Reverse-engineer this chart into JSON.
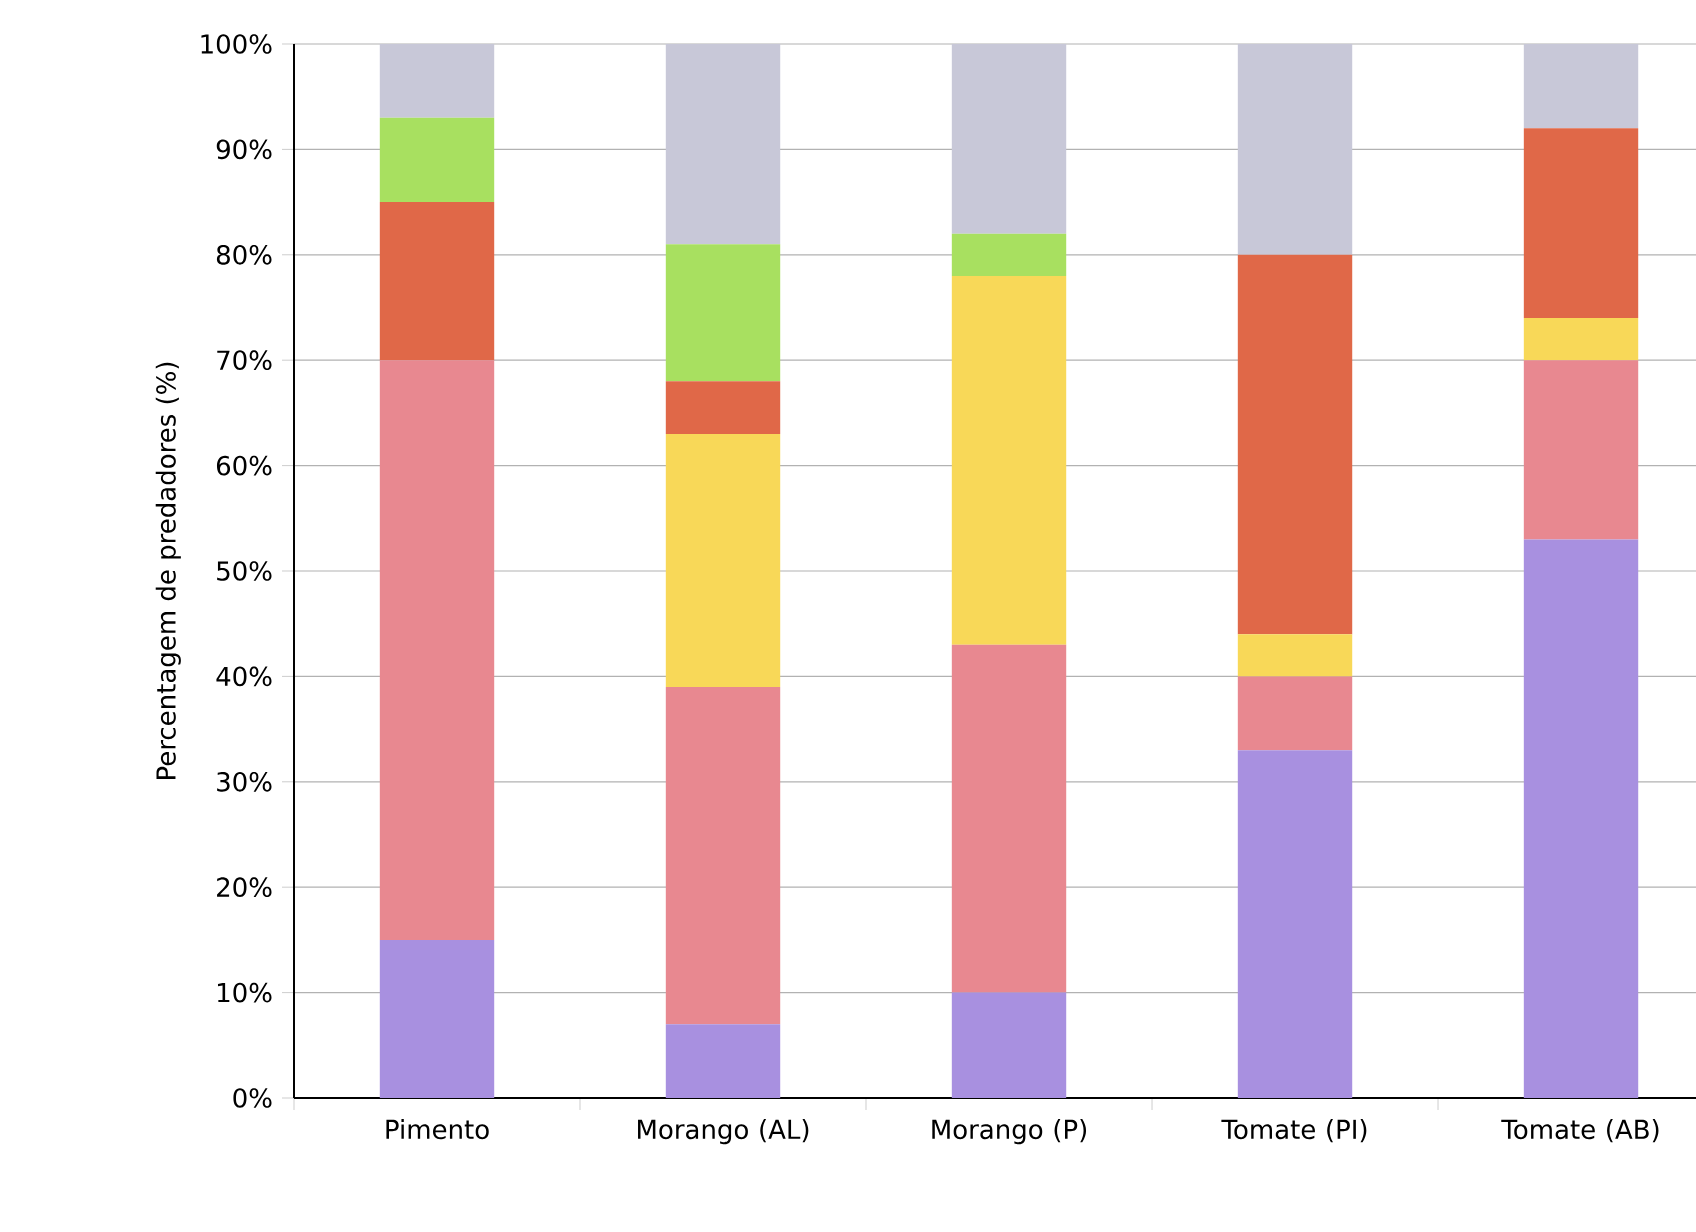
{
  "chart_data": {
    "type": "bar",
    "stacked": true,
    "ylabel": "Percentagem de predadores (%)",
    "categories": [
      "Pimento",
      "Morango (AL)",
      "Morango (P)",
      "Tomate (PI)",
      "Tomate (AB)"
    ],
    "series": [
      {
        "color": "#a890e0",
        "values": [
          15,
          7,
          10,
          33,
          53
        ]
      },
      {
        "color": "#e88890",
        "values": [
          55,
          32,
          33,
          7,
          17
        ]
      },
      {
        "color": "#f8d858",
        "values": [
          0,
          24,
          35,
          4,
          4
        ]
      },
      {
        "color": "#e06848",
        "values": [
          15,
          5,
          0,
          36,
          18
        ]
      },
      {
        "color": "#a8e060",
        "values": [
          8,
          13,
          4,
          0,
          0
        ]
      },
      {
        "color": "#c8c8d8",
        "values": [
          7,
          19,
          18,
          20,
          8
        ]
      }
    ],
    "ylim": [
      0,
      100
    ],
    "yticks": [
      {
        "value": 0,
        "label": "0%"
      },
      {
        "value": 10,
        "label": "10%"
      },
      {
        "value": 20,
        "label": "20%"
      },
      {
        "value": 30,
        "label": "30%"
      },
      {
        "value": 40,
        "label": "40%"
      },
      {
        "value": 50,
        "label": "50%"
      },
      {
        "value": 60,
        "label": "60%"
      },
      {
        "value": 70,
        "label": "70%"
      },
      {
        "value": 80,
        "label": "80%"
      },
      {
        "value": 90,
        "label": "90%"
      },
      {
        "value": 100,
        "label": "100%"
      }
    ],
    "grid": "y"
  }
}
